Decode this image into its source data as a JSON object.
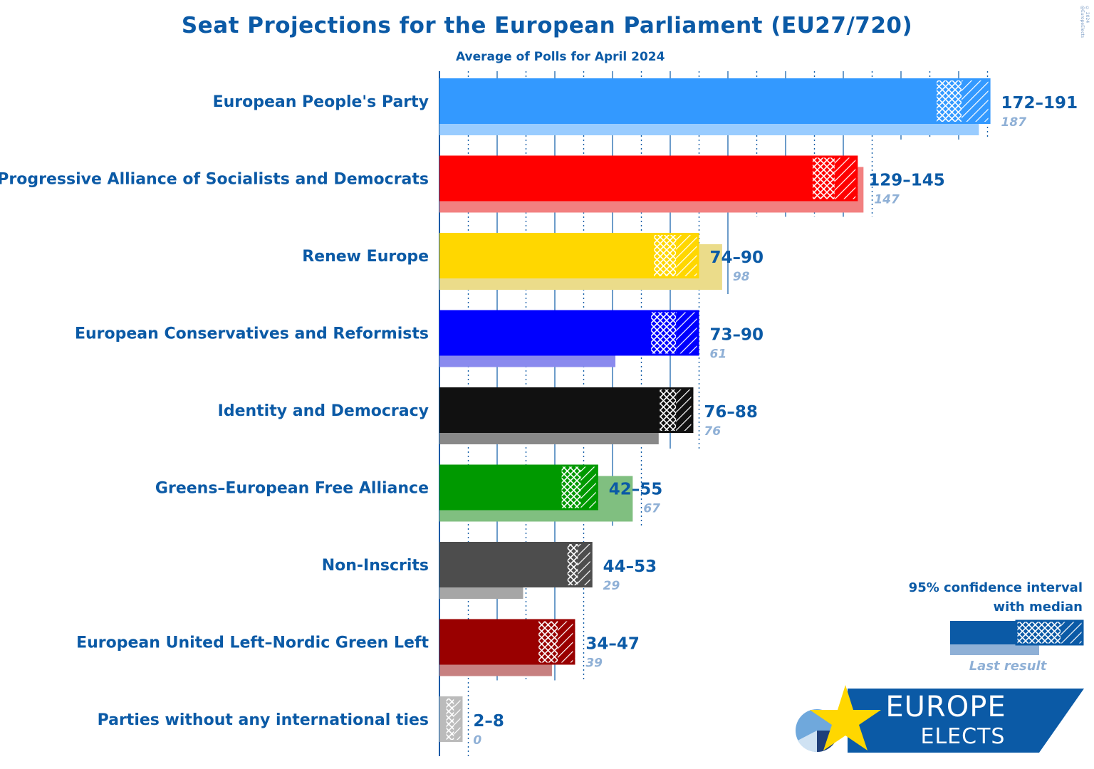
{
  "chart_data": {
    "type": "bar",
    "title": "Seat Projections for the European Parliament (EU27/720)",
    "subtitle": "Average of Polls for April 2024",
    "xlim": [
      0,
      200
    ],
    "series": [
      {
        "name": "European People's Party",
        "low": 172,
        "median": 181,
        "high": 191,
        "range_label": "172–191",
        "last": 187,
        "last_label": "187",
        "color": "#3399ff",
        "last_color": "#99ccff"
      },
      {
        "name": "Progressive Alliance of Socialists and Democrats",
        "low": 129,
        "median": 137,
        "high": 145,
        "range_label": "129–145",
        "last": 147,
        "last_label": "147",
        "color": "#ff0000",
        "last_color": "#f28080"
      },
      {
        "name": "Renew Europe",
        "low": 74,
        "median": 82,
        "high": 90,
        "range_label": "74–90",
        "last": 98,
        "last_label": "98",
        "color": "#ffd700",
        "last_color": "#ebdc8a"
      },
      {
        "name": "European Conservatives and Reformists",
        "low": 73,
        "median": 82,
        "high": 90,
        "range_label": "73–90",
        "last": 61,
        "last_label": "61",
        "color": "#0000ff",
        "last_color": "#8a8aee"
      },
      {
        "name": "Identity and Democracy",
        "low": 76,
        "median": 82,
        "high": 88,
        "range_label": "76–88",
        "last": 76,
        "last_label": "76",
        "color": "#111111",
        "last_color": "#888888"
      },
      {
        "name": "Greens–European Free Alliance",
        "low": 42,
        "median": 49,
        "high": 55,
        "range_label": "42–55",
        "last": 67,
        "last_label": "67",
        "color": "#009900",
        "last_color": "#80bf80"
      },
      {
        "name": "Non-Inscrits",
        "low": 44,
        "median": 48,
        "high": 53,
        "range_label": "44–53",
        "last": 29,
        "last_label": "29",
        "color": "#4d4d4d",
        "last_color": "#a6a6a6"
      },
      {
        "name": "European United Left–Nordic Green Left",
        "low": 34,
        "median": 41,
        "high": 47,
        "range_label": "34–47",
        "last": 39,
        "last_label": "39",
        "color": "#990000",
        "last_color": "#c78080"
      },
      {
        "name": "Parties without any international ties",
        "low": 2,
        "median": 5,
        "high": 8,
        "range_label": "2–8",
        "last": 0,
        "last_label": "0",
        "color": "#bbbbbb",
        "last_color": "#dddddd"
      }
    ],
    "legend": {
      "line1": "95% confidence interval",
      "line2": "with median",
      "last_result": "Last result"
    }
  },
  "logo": {
    "top": "EUROPE",
    "bottom": "ELECTS"
  },
  "copyright": "© 2024 @EuropeElects",
  "colors": {
    "brand_blue": "#0b5aa6",
    "last_label": "#8fb0d6"
  }
}
